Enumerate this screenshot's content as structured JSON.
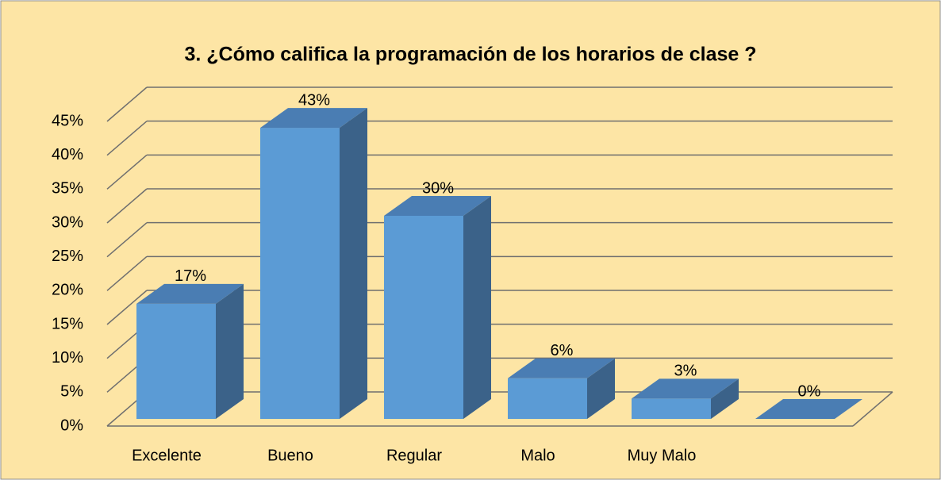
{
  "chart_data": {
    "type": "bar3d",
    "title": "3. ¿Cómo califica la programación de los horarios de clase ?",
    "categories": [
      "Excelente",
      "Bueno",
      "Regular",
      "Malo",
      "Muy Malo",
      null
    ],
    "values": [
      17,
      43,
      30,
      6,
      3,
      0
    ],
    "value_labels": [
      "17%",
      "43%",
      "30%",
      "6%",
      "3%",
      "0%"
    ],
    "color": "#5b9bd5",
    "ylim": [
      0,
      45
    ],
    "yticks": [
      {
        "value": 0,
        "label": "0%"
      },
      {
        "value": 5,
        "label": "5%"
      },
      {
        "value": 10,
        "label": "10%"
      },
      {
        "value": 15,
        "label": "15%"
      },
      {
        "value": 20,
        "label": "20%"
      },
      {
        "value": 25,
        "label": "25%"
      },
      {
        "value": 30,
        "label": "30%"
      },
      {
        "value": 35,
        "label": "35%"
      },
      {
        "value": 40,
        "label": "40%"
      },
      {
        "value": 45,
        "label": "45%"
      }
    ],
    "grid": true
  }
}
